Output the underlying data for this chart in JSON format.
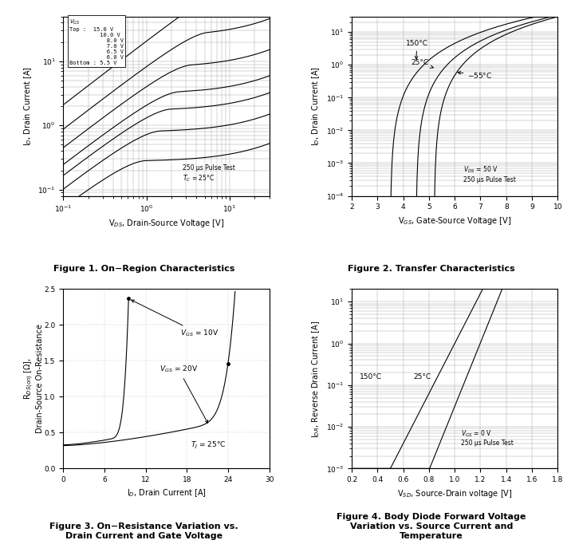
{
  "fig1": {
    "xlabel": "V$_{DS}$, Drain-Source Voltage [V]",
    "ylabel": "I$_D$, Drain Current [A]",
    "vgs_values": [
      15.0,
      10.0,
      8.0,
      7.0,
      6.5,
      6.0,
      5.5
    ],
    "xlim_log": [
      -1,
      1.5
    ],
    "ylim": [
      0.08,
      50
    ],
    "caption": "Figure 1. On−Region Characteristics"
  },
  "fig2": {
    "xlabel": "V$_{GS}$, Gate-Source Voltage [V]",
    "ylabel": "I$_D$, Drain Current [A]",
    "xlim": [
      2,
      10
    ],
    "ylim": [
      0.0001,
      30
    ],
    "caption": "Figure 2. Transfer Characteristics"
  },
  "fig3": {
    "xlabel": "I$_D$, Drain Current [A]",
    "ylabel": "R$_{DS(on)}$ [Ω],\nDrain-Source On-Resistance",
    "xlim": [
      0,
      30
    ],
    "ylim": [
      0,
      2.5
    ],
    "xticks": [
      0,
      6,
      12,
      18,
      24,
      30
    ],
    "yticks": [
      0,
      0.5,
      1.0,
      1.5,
      2.0,
      2.5
    ],
    "caption": "Figure 3. On−Resistance Variation vs.\nDrain Current and Gate Voltage"
  },
  "fig4": {
    "xlabel": "V$_{SD}$, Source-Drain voltage [V]",
    "ylabel": "I$_{DR}$, Reverse Drain Current [A]",
    "xlim": [
      0.2,
      1.8
    ],
    "ylim": [
      0.001,
      20
    ],
    "xticks": [
      0.2,
      0.4,
      0.6,
      0.8,
      1.0,
      1.2,
      1.4,
      1.6,
      1.8
    ],
    "caption": "Figure 4. Body Diode Forward Voltage\nVariation vs. Source Current and\nTemperature"
  },
  "line_color": "#000000",
  "grid_color": "#aaaaaa",
  "background": "#ffffff",
  "caption_color": "#000000",
  "caption_fontsize": 8
}
